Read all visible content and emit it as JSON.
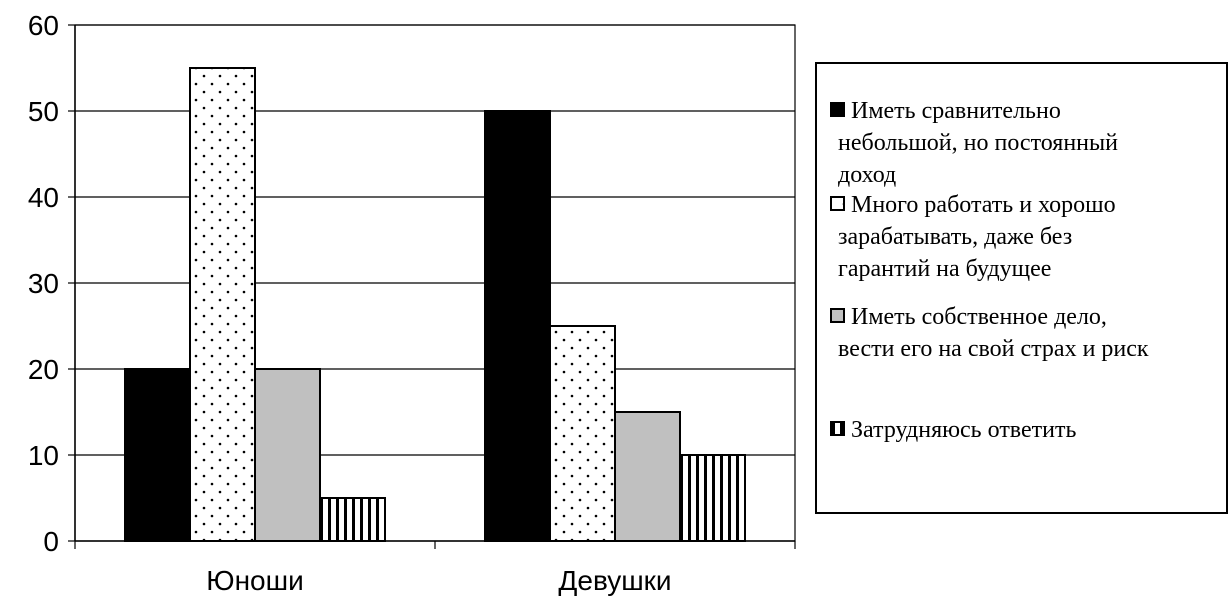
{
  "chart_data": {
    "type": "bar",
    "categories": [
      "Юноши",
      "Девушки"
    ],
    "series": [
      {
        "name": "Иметь сравнительно небольшой, но постоянный доход",
        "values": [
          20,
          50
        ],
        "pattern": "solid",
        "color": "#000000"
      },
      {
        "name": "Много работать и хорошо зарабатывать, даже без гарантий на будущее",
        "values": [
          55,
          25
        ],
        "pattern": "dots",
        "color": "#ffffff"
      },
      {
        "name": "Иметь собственное дело, вести его на свой страх и риск",
        "values": [
          20,
          15
        ],
        "pattern": "solid",
        "color": "#c0c0c0"
      },
      {
        "name": "Затрудняюсь ответить",
        "values": [
          5,
          10
        ],
        "pattern": "vertical-lines",
        "color": "#ffffff"
      }
    ],
    "legend_lines": [
      [
        "Иметь сравнительно",
        "небольшой, но постоянный",
        "доход"
      ],
      [
        "Много работать и хорошо",
        "зарабатывать, даже без",
        "гарантий на будущее"
      ],
      [
        "Иметь собственное дело,",
        "вести его на свой страх и риск"
      ],
      [
        "Затрудняюсь ответить"
      ]
    ],
    "y_ticks": [
      "0",
      "10",
      "20",
      "30",
      "40",
      "50",
      "60"
    ],
    "ylim": [
      0,
      60
    ],
    "grid": true,
    "legend_position": "right"
  }
}
